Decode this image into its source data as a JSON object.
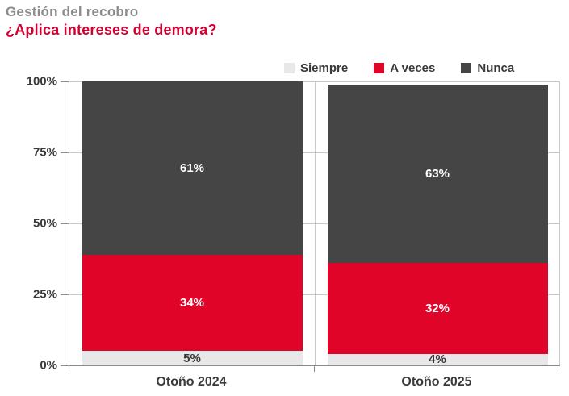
{
  "header": {
    "title": "Gestión del recobro",
    "subtitle": "¿Aplica intereses de demora?"
  },
  "colors": {
    "title_gray": "#8C8C8C",
    "subtitle_red": "#D40032",
    "axis": "#8A8A8A",
    "gridline": "#C9C9C9",
    "text_dark": "#3A3A3A"
  },
  "chart_data": {
    "type": "bar",
    "stacked": true,
    "title": "Gestión del recobro",
    "subtitle": "¿Aplica intereses de demora?",
    "categories": [
      "Otoño 2024",
      "Otoño 2025"
    ],
    "series": [
      {
        "name": "Siempre",
        "values": [
          5,
          4
        ],
        "color": "#E8E8E8",
        "label_color": "#3A3A3A"
      },
      {
        "name": "A veces",
        "values": [
          34,
          32
        ],
        "color": "#E00428",
        "label_color": "#FFFFFF"
      },
      {
        "name": "Nunca",
        "values": [
          61,
          63
        ],
        "color": "#454545",
        "label_color": "#FFFFFF"
      }
    ],
    "value_suffix": "%",
    "ylim": [
      0,
      100
    ],
    "ytick_values": [
      0,
      25,
      50,
      75,
      100
    ],
    "ytick_labels": [
      "0%",
      "25%",
      "50%",
      "75%",
      "100%"
    ],
    "grid": true,
    "legend_position": "top"
  }
}
